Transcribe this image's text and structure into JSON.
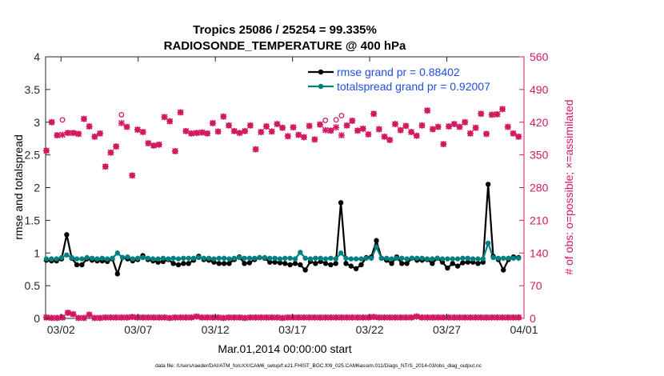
{
  "chart_data": {
    "type": "line",
    "title_line1": "Tropics 25086 / 25254 = 99.335%",
    "title_line2": "RADIOSONDE_TEMPERATURE @ 400 hPa",
    "xlabel": "Mar.01,2014 00:00:00 start",
    "ylabel": "rmse and totalspread",
    "ylabel_right": "# of obs: o=possible; ×=assimilated",
    "xlim": [
      0,
      31
    ],
    "ylim": [
      0,
      4
    ],
    "ylim_right": [
      0,
      560
    ],
    "x_ticks": [
      1,
      6,
      11,
      16,
      21,
      26,
      31
    ],
    "x_tick_labels": [
      "03/02",
      "03/07",
      "03/12",
      "03/17",
      "03/22",
      "03/27",
      "04/01"
    ],
    "y_ticks": [
      0,
      0.5,
      1,
      1.5,
      2,
      2.5,
      3,
      3.5,
      4
    ],
    "y_tick_labels": [
      "0",
      "0.5",
      "1",
      "1.5",
      "2",
      "2.5",
      "3",
      "3.5",
      "4"
    ],
    "y_right_ticks": [
      0,
      70,
      140,
      210,
      280,
      350,
      420,
      490,
      560
    ],
    "y_right_tick_labels": [
      "0",
      "70",
      "140",
      "210",
      "280",
      "350",
      "420",
      "490",
      "560"
    ],
    "legend": [
      "rmse grand pr = 0.88402",
      "totalspread grand pr = 0.92007"
    ],
    "colors": {
      "rmse": "#000000",
      "spread": "#008080",
      "obs": "#d3185f",
      "legend_text": "#1f4fe0"
    },
    "series": [
      {
        "name": "rmse",
        "values": [
          0.89,
          0.88,
          0.88,
          0.91,
          1.28,
          0.92,
          0.82,
          0.82,
          0.91,
          0.89,
          0.88,
          0.88,
          0.87,
          0.91,
          0.68,
          0.93,
          0.91,
          0.88,
          0.9,
          0.96,
          0.9,
          0.88,
          0.86,
          0.87,
          0.9,
          0.84,
          0.82,
          0.84,
          0.84,
          0.89,
          0.95,
          0.9,
          0.89,
          0.86,
          0.84,
          0.84,
          0.84,
          0.9,
          0.94,
          0.84,
          0.85,
          0.9,
          0.93,
          0.92,
          0.86,
          0.86,
          0.85,
          0.84,
          0.82,
          0.84,
          0.82,
          0.74,
          0.87,
          0.84,
          0.87,
          0.84,
          0.82,
          0.84,
          1.77,
          0.84,
          0.8,
          0.76,
          0.82,
          0.93,
          0.94,
          1.19,
          0.92,
          0.89,
          0.84,
          0.94,
          0.84,
          0.84,
          0.92,
          0.89,
          0.89,
          0.9,
          0.84,
          0.92,
          0.86,
          0.77,
          0.84,
          0.8,
          0.85,
          0.86,
          0.86,
          0.84,
          0.86,
          2.05,
          0.95,
          0.9,
          0.74,
          0.9,
          0.94,
          0.93
        ]
      },
      {
        "name": "totalspread",
        "values": [
          0.91,
          0.91,
          0.91,
          0.93,
          0.97,
          0.93,
          0.91,
          0.91,
          0.93,
          0.92,
          0.91,
          0.92,
          0.91,
          0.92,
          1.0,
          0.93,
          0.94,
          0.91,
          0.92,
          0.93,
          0.92,
          0.91,
          0.91,
          0.92,
          0.91,
          0.92,
          0.91,
          0.92,
          0.92,
          0.92,
          0.93,
          0.92,
          0.92,
          0.91,
          0.92,
          0.92,
          0.91,
          0.92,
          0.93,
          0.92,
          0.92,
          0.92,
          0.93,
          0.93,
          0.92,
          0.92,
          0.91,
          0.92,
          0.92,
          0.91,
          1.01,
          0.92,
          0.91,
          0.92,
          0.92,
          0.91,
          0.92,
          0.91,
          1.0,
          0.92,
          0.91,
          0.91,
          0.91,
          0.92,
          0.92,
          1.09,
          0.92,
          0.92,
          0.91,
          0.92,
          0.92,
          0.91,
          0.92,
          0.92,
          0.92,
          0.91,
          0.91,
          0.92,
          0.91,
          0.91,
          0.91,
          0.91,
          0.92,
          0.92,
          0.91,
          0.91,
          0.91,
          1.15,
          0.93,
          0.92,
          0.92,
          0.92,
          0.92,
          0.92
        ]
      },
      {
        "name": "obs_possible",
        "values": [
          359,
          420,
          392,
          425,
          397,
          397,
          395,
          427,
          411,
          389,
          396,
          325,
          355,
          368,
          436,
          410,
          306,
          404,
          399,
          375,
          370,
          372,
          431,
          422,
          358,
          441,
          401,
          396,
          397,
          398,
          396,
          418,
          400,
          432,
          413,
          401,
          397,
          401,
          413,
          362,
          399,
          411,
          400,
          416,
          408,
          390,
          409,
          393,
          388,
          412,
          383,
          415,
          424,
          402,
          425,
          434,
          413,
          423,
          402,
          406,
          394,
          438,
          405,
          389,
          382,
          416,
          403,
          412,
          399,
          391,
          413,
          445,
          405,
          410,
          373,
          411,
          416,
          410,
          420,
          396,
          408,
          438,
          395,
          436,
          437,
          448,
          410,
          396,
          389
        ]
      },
      {
        "name": "obs_assimilated",
        "values": [
          359,
          420,
          392,
          393,
          397,
          397,
          395,
          427,
          411,
          389,
          396,
          325,
          355,
          368,
          418,
          410,
          306,
          404,
          399,
          375,
          370,
          372,
          431,
          422,
          358,
          441,
          401,
          396,
          397,
          398,
          396,
          418,
          400,
          432,
          413,
          401,
          397,
          401,
          413,
          362,
          399,
          411,
          400,
          416,
          408,
          390,
          409,
          393,
          388,
          412,
          383,
          415,
          403,
          402,
          409,
          392,
          413,
          423,
          402,
          406,
          394,
          438,
          405,
          389,
          382,
          416,
          403,
          412,
          399,
          391,
          413,
          445,
          405,
          410,
          373,
          411,
          416,
          410,
          420,
          396,
          408,
          438,
          395,
          436,
          437,
          448,
          410,
          396,
          389
        ]
      },
      {
        "name": "rejected_counts",
        "values": [
          2,
          1,
          1,
          2,
          12,
          9,
          1,
          1,
          8,
          1,
          1,
          2,
          2,
          2,
          2,
          2,
          3,
          2,
          2,
          2,
          2,
          2,
          2,
          1,
          2,
          2,
          2,
          2,
          4,
          2,
          2,
          2,
          2,
          1,
          2,
          2,
          2,
          1,
          2,
          2,
          2,
          2,
          2,
          2,
          1,
          2,
          2,
          2,
          2,
          2,
          2,
          2,
          2,
          2,
          2,
          2,
          2,
          2,
          2,
          2,
          2,
          3,
          2,
          2,
          2,
          2,
          2,
          2,
          2,
          4,
          2,
          2,
          2,
          2,
          2,
          2,
          2,
          2,
          2,
          2,
          2,
          2,
          2,
          2,
          2,
          2,
          2,
          2,
          2
        ]
      }
    ]
  },
  "footer": {
    "datafile": "data file: /Users/raeder/DAI/ATM_forcXX/CAM6_setup/f.e21.FHIST_BGC.f09_025.CAM6assim.011/Diags_NTrS_2014-03/obs_diag_output.nc"
  }
}
